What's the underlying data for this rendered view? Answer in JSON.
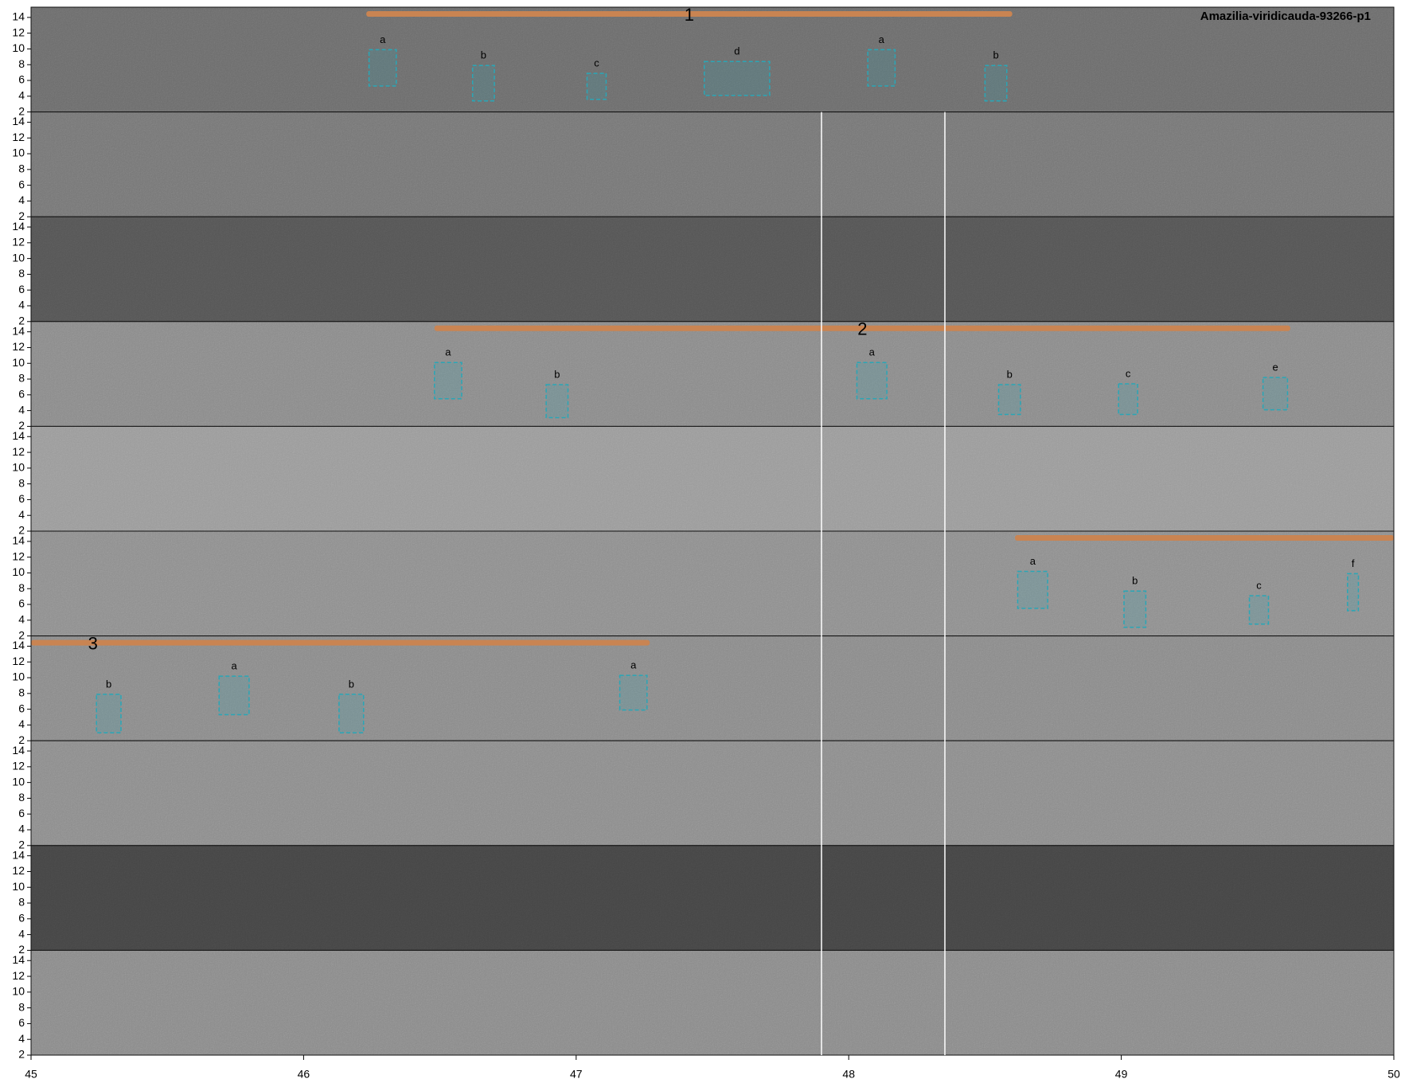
{
  "chart_data": {
    "type": "spectrogram",
    "title": "Amazilia-viridicauda-93266-p1",
    "xlim": [
      45,
      50
    ],
    "xticks": [
      45,
      46,
      47,
      48,
      49,
      50
    ],
    "ylim": [
      2,
      15.3
    ],
    "yticks": [
      2,
      4,
      6,
      8,
      10,
      12,
      14
    ],
    "phrase_color": "#c98452",
    "box_color": "#2aa6b6",
    "rows": [
      {
        "color": "#6c6c6c",
        "phrases": [
          {
            "label": "1",
            "start": 46.23,
            "end": 48.6
          }
        ],
        "syllables": [
          {
            "label": "a",
            "x": [
              46.24,
              46.34
            ],
            "y": [
              5.3,
              9.9
            ]
          },
          {
            "label": "b",
            "x": [
              46.62,
              46.7
            ],
            "y": [
              3.4,
              7.9
            ]
          },
          {
            "label": "c",
            "x": [
              47.04,
              47.11
            ],
            "y": [
              3.6,
              6.9
            ]
          },
          {
            "label": "d",
            "x": [
              47.47,
              47.71
            ],
            "y": [
              4.1,
              8.4
            ]
          },
          {
            "label": "a",
            "x": [
              48.07,
              48.17
            ],
            "y": [
              5.3,
              9.9
            ]
          },
          {
            "label": "b",
            "x": [
              48.5,
              48.58
            ],
            "y": [
              3.4,
              7.9
            ]
          }
        ]
      },
      {
        "color": "#767676",
        "phrases": [],
        "syllables": []
      },
      {
        "color": "#555555",
        "phrases": [],
        "syllables": []
      },
      {
        "color": "#8a8a8a",
        "phrases": [
          {
            "label": "2",
            "start": 46.48,
            "end": 49.62
          }
        ],
        "syllables": [
          {
            "label": "a",
            "x": [
              46.48,
              46.58
            ],
            "y": [
              5.5,
              10.1
            ]
          },
          {
            "label": "b",
            "x": [
              46.89,
              46.97
            ],
            "y": [
              3.1,
              7.3
            ]
          },
          {
            "label": "a",
            "x": [
              48.03,
              48.14
            ],
            "y": [
              5.5,
              10.1
            ]
          },
          {
            "label": "b",
            "x": [
              48.55,
              48.63
            ],
            "y": [
              3.5,
              7.3
            ]
          },
          {
            "label": "c",
            "x": [
              48.99,
              49.06
            ],
            "y": [
              3.5,
              7.4
            ]
          },
          {
            "label": "e",
            "x": [
              49.52,
              49.61
            ],
            "y": [
              4.1,
              8.2
            ]
          }
        ]
      },
      {
        "color": "#9a9a9a",
        "phrases": [],
        "syllables": []
      },
      {
        "color": "#8e8e8e",
        "phrases": [
          {
            "start": 48.61,
            "end": 50
          }
        ],
        "syllables": [
          {
            "label": "a",
            "x": [
              48.62,
              48.73
            ],
            "y": [
              5.5,
              10.2
            ]
          },
          {
            "label": "b",
            "x": [
              49.01,
              49.09
            ],
            "y": [
              3.1,
              7.7
            ]
          },
          {
            "label": "c",
            "x": [
              49.47,
              49.54
            ],
            "y": [
              3.5,
              7.1
            ]
          },
          {
            "label": "f",
            "x": [
              49.83,
              49.87
            ],
            "y": [
              5.2,
              9.9
            ]
          }
        ]
      },
      {
        "color": "#8a8a8a",
        "phrases": [
          {
            "label": "3",
            "start": 45,
            "end": 47.27
          }
        ],
        "syllables": [
          {
            "label": "b",
            "x": [
              45.24,
              45.33
            ],
            "y": [
              3.0,
              7.9
            ]
          },
          {
            "label": "a",
            "x": [
              45.69,
              45.8
            ],
            "y": [
              5.3,
              10.2
            ]
          },
          {
            "label": "b",
            "x": [
              46.13,
              46.22
            ],
            "y": [
              3.0,
              7.9
            ]
          },
          {
            "label": "a",
            "x": [
              47.16,
              47.26
            ],
            "y": [
              5.9,
              10.3
            ]
          }
        ]
      },
      {
        "color": "#8c8c8c",
        "phrases": [],
        "syllables": []
      },
      {
        "color": "#454545",
        "phrases": [],
        "syllables": []
      },
      {
        "color": "#8a8a8a",
        "phrases": [],
        "syllables": []
      }
    ]
  }
}
